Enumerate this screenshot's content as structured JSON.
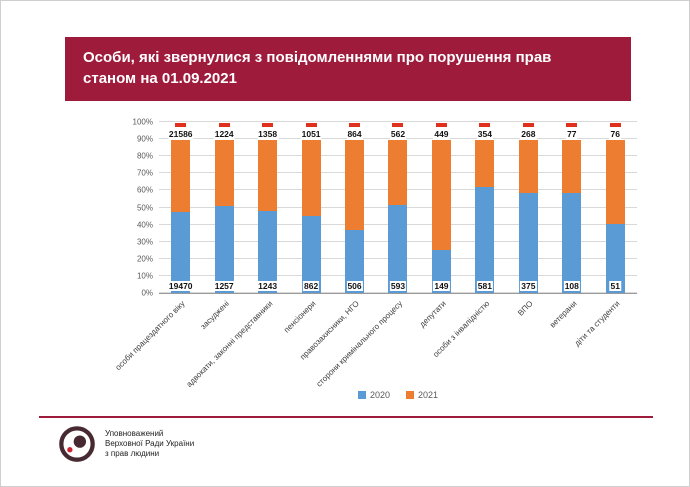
{
  "header": {
    "title_line1": "Особи, які звернулися з повідомленнями про порушення прав",
    "title_line2": "станом на 01.09.2021"
  },
  "chart_data": {
    "type": "bar",
    "subtype": "stacked-percent",
    "title": "Особи, які звернулися з повідомленнями про порушення прав станом на 01.09.2021",
    "categories": [
      "особи працездатного віку",
      "засуджені",
      "адвокати, законні представники",
      "пенсіонери",
      "правозахисники, НГО",
      "сторони кримінального процесу",
      "депутати",
      "особи з інвалідністю",
      "ВПО",
      "ветерани",
      "діти та студенти"
    ],
    "series": [
      {
        "name": "2020",
        "color": "#5b9bd5",
        "values": [
          19470,
          1257,
          1243,
          862,
          506,
          593,
          149,
          581,
          375,
          108,
          51
        ]
      },
      {
        "name": "2021",
        "color": "#ed7d31",
        "values": [
          21586,
          1224,
          1358,
          1051,
          864,
          562,
          449,
          354,
          268,
          77,
          76
        ]
      }
    ],
    "y_ticks": [
      "0%",
      "10%",
      "20%",
      "30%",
      "40%",
      "50%",
      "60%",
      "70%",
      "80%",
      "90%",
      "100%"
    ],
    "ylim": [
      0,
      100
    ],
    "grid": true,
    "legend_position": "bottom",
    "top_marker_color": "#e0301e"
  },
  "footer": {
    "org_lines": [
      "Уповноважений",
      "Верховної Ради України",
      "з прав людини"
    ]
  },
  "colors": {
    "header_bg": "#9e1b3c",
    "divider": "#9e1b3c",
    "gridline": "#d9d9d9",
    "axis_text": "#595959"
  }
}
